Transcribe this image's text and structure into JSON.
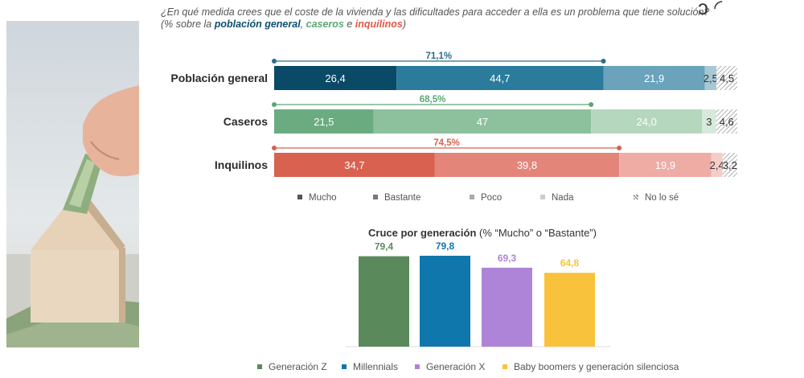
{
  "question": {
    "line1": "¿En qué medida crees que el coste de la vivienda y las dificultades para acceder a ella es un problema que tiene solución?",
    "prefix": "(% sobre la ",
    "g1": "población general",
    "sep1": ", ",
    "g2": "caseros",
    "sep2": " e ",
    "g3": "inquilinos",
    "suffix": ")"
  },
  "chart_data": [
    {
      "type": "stacked-bar-horizontal",
      "categories": [
        "Población general",
        "Caseros",
        "Inquilinos"
      ],
      "segment_labels": [
        "Mucho",
        "Bastante",
        "Poco",
        "Nada",
        "No lo sé"
      ],
      "rows": [
        {
          "name": "Población general",
          "values": [
            26.4,
            44.7,
            21.9,
            2.5,
            4.5
          ],
          "labels": [
            "26,4",
            "44,7",
            "21,9",
            "2,5",
            "4,5"
          ],
          "bracket": 71.1,
          "bracket_label": "71,1%",
          "colors": [
            "#0b4a67",
            "#2b7c9c",
            "#6aa3bb",
            "#a8c8d6"
          ],
          "bracket_color": "#2b6c8a"
        },
        {
          "name": "Caseros",
          "values": [
            21.5,
            47.0,
            24.0,
            3.0,
            4.6
          ],
          "labels": [
            "21,5",
            "47",
            "24,0",
            "3",
            "4,6"
          ],
          "bracket": 68.5,
          "bracket_label": "68,5%",
          "colors": [
            "#6aac80",
            "#8dc09c",
            "#b5d7be",
            "#d6e9da"
          ],
          "bracket_color": "#5aa673"
        },
        {
          "name": "Inquilinos",
          "values": [
            34.7,
            39.8,
            19.9,
            2.4,
            3.2
          ],
          "labels": [
            "34,7",
            "39,8",
            "19,9",
            "2,4",
            "3,2"
          ],
          "bracket": 74.5,
          "bracket_label": "74,5%",
          "colors": [
            "#d9614f",
            "#e4857a",
            "#eeaca5",
            "#f4cdc8"
          ],
          "bracket_color": "#d9614f"
        }
      ],
      "legend": [
        {
          "label": "Mucho",
          "color": "#555555"
        },
        {
          "label": "Bastante",
          "color": "#777777"
        },
        {
          "label": "Poco",
          "color": "#aaaaaa"
        },
        {
          "label": "Nada",
          "color": "#cccccc"
        },
        {
          "label": "No lo sé",
          "color": "#888888"
        }
      ]
    },
    {
      "type": "bar",
      "title": "Cruce por generación",
      "subtitle": " (% “Mucho” o “Bastante”)",
      "categories": [
        "Generación Z",
        "Millennials",
        "Generación X",
        "Baby boomers y generación silenciosa"
      ],
      "values": [
        79.4,
        79.8,
        69.3,
        64.8
      ],
      "labels": [
        "79,4",
        "79,8",
        "69,3",
        "64,8"
      ],
      "colors": [
        "#5a8a5c",
        "#0f77ac",
        "#ae84d9",
        "#f9c23c"
      ],
      "ylim": [
        0,
        100
      ]
    }
  ]
}
